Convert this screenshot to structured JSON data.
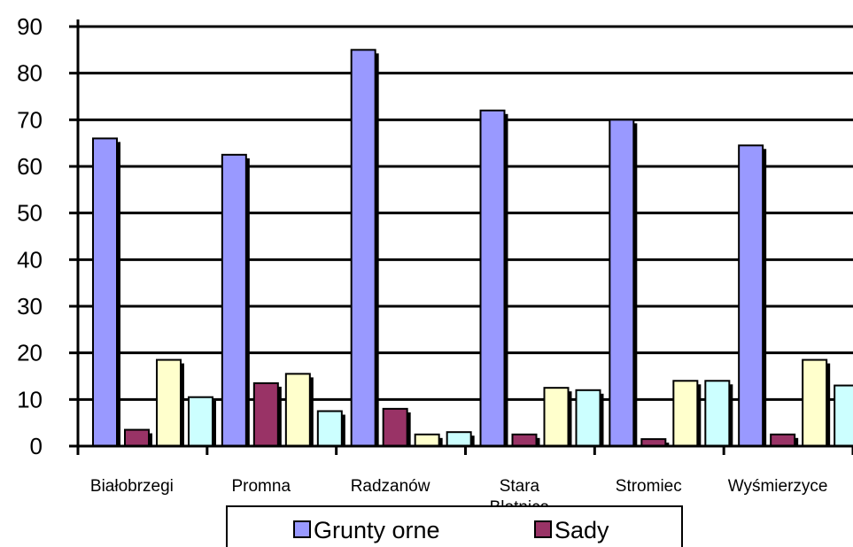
{
  "chart_data": {
    "type": "bar",
    "categories": [
      "Białobrzegi",
      "Promna",
      "Radzanów",
      "Stara Błotnica",
      "Stromiec",
      "Wyśmierzyce"
    ],
    "category_labels_lines": [
      [
        "Białobrzegi"
      ],
      [
        "Promna"
      ],
      [
        "Radzanów"
      ],
      [
        "Stara",
        "Błotnica"
      ],
      [
        "Stromiec"
      ],
      [
        "Wyśmierzyce"
      ]
    ],
    "series": [
      {
        "name": "Grunty orne",
        "values": [
          66,
          62.5,
          85,
          72,
          70,
          64.5
        ],
        "color": "#9999ff"
      },
      {
        "name": "Sady",
        "values": [
          3.5,
          13.5,
          8,
          2.5,
          1.5,
          2.5
        ],
        "color": "#993366"
      },
      {
        "name": "",
        "values": [
          18.5,
          15.5,
          2.5,
          12.5,
          14,
          18.5
        ],
        "color": "#ffffcc"
      },
      {
        "name": "",
        "values": [
          10.5,
          7.5,
          3,
          12,
          14,
          13
        ],
        "color": "#ccffff"
      }
    ],
    "yticks": [
      0,
      10,
      20,
      30,
      40,
      50,
      60,
      70,
      80,
      90
    ],
    "ylim": [
      0,
      90
    ],
    "title": "",
    "xlabel": "",
    "ylabel": "",
    "grid": true,
    "legend": {
      "placement": "bottom",
      "entries": [
        "Grunty orne",
        "Sady"
      ]
    }
  }
}
